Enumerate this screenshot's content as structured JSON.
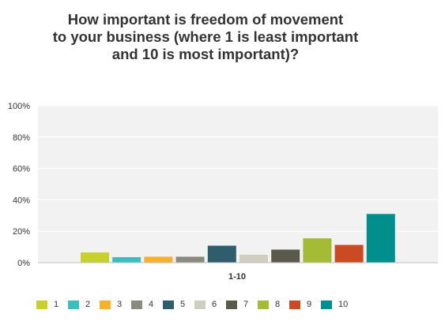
{
  "chart_data": {
    "type": "bar",
    "title": "How important is freedom of movement\nto your business (where 1 is least important\nand 10 is most important)?",
    "xlabel": "",
    "ylabel": "",
    "categories": [
      "1-10"
    ],
    "y_ticks": [
      "0%",
      "20%",
      "40%",
      "60%",
      "80%",
      "100%"
    ],
    "ylim": [
      0,
      100
    ],
    "grid": true,
    "legend_position": "bottom",
    "series": [
      {
        "name": "1",
        "values": [
          6.5
        ],
        "color": "#c8d12b"
      },
      {
        "name": "2",
        "values": [
          3.5
        ],
        "color": "#3bbfbd"
      },
      {
        "name": "3",
        "values": [
          3.8
        ],
        "color": "#f7b12c"
      },
      {
        "name": "4",
        "values": [
          3.8
        ],
        "color": "#8a8b7e"
      },
      {
        "name": "5",
        "values": [
          10.8
        ],
        "color": "#2f5d6c"
      },
      {
        "name": "6",
        "values": [
          5.0
        ],
        "color": "#cfcfc0"
      },
      {
        "name": "7",
        "values": [
          8.3
        ],
        "color": "#5a5a4a"
      },
      {
        "name": "8",
        "values": [
          15.5
        ],
        "color": "#a4bb36"
      },
      {
        "name": "9",
        "values": [
          11.3
        ],
        "color": "#cc4a22"
      },
      {
        "name": "10",
        "values": [
          31.0
        ],
        "color": "#008f8c"
      }
    ]
  }
}
